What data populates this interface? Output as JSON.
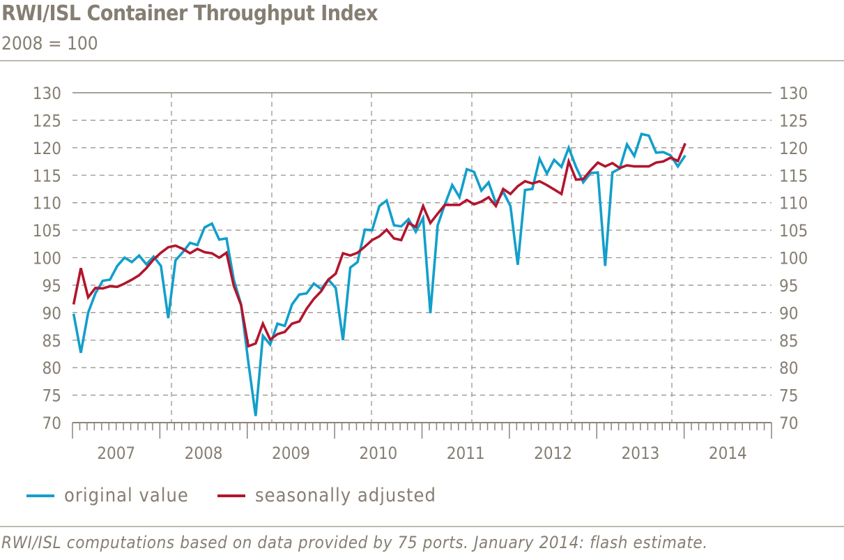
{
  "chart_data": {
    "type": "line",
    "title": "RWI/ISL Container Throughput Index",
    "subtitle": "2008 = 100",
    "xlabel": "",
    "ylabel": "",
    "x_start": "2007-01",
    "x_end": "2014-01",
    "x_frequency": "monthly",
    "x_tick_labels": [
      "2007",
      "2008",
      "2009",
      "2010",
      "2011",
      "2012",
      "2013",
      "2014"
    ],
    "ylim": [
      70,
      130
    ],
    "y_ticks": [
      70,
      75,
      80,
      85,
      90,
      95,
      100,
      105,
      110,
      115,
      120,
      125,
      130
    ],
    "grid": true,
    "legend_placement": "bottom-left",
    "series": [
      {
        "name": "original value",
        "color": "#129fcb",
        "values": [
          89.8,
          82.7,
          90,
          93.5,
          95.8,
          96,
          98.5,
          100,
          99.2,
          100.4,
          98.8,
          100.2,
          98.5,
          89,
          99.5,
          101,
          102.7,
          102.3,
          105.5,
          106.2,
          103.3,
          103.5,
          96,
          91.5,
          81,
          71.2,
          85.8,
          84.2,
          88,
          87.6,
          91.5,
          93.3,
          93.5,
          95.3,
          94.3,
          96,
          94.5,
          85,
          98.2,
          99.2,
          105.1,
          105,
          109.4,
          110.4,
          105.9,
          105.7,
          107,
          104.7,
          107.2,
          89.9,
          105.9,
          109.7,
          113.2,
          111,
          116.1,
          115.6,
          112.2,
          113.7,
          109.9,
          112,
          109.4,
          98.7,
          112.3,
          112.5,
          118,
          115.3,
          117.8,
          116.5,
          120,
          116.5,
          113.7,
          115.4,
          115.5,
          98.5,
          115.5,
          116.2,
          120.6,
          118.5,
          122.5,
          122.2,
          119.1,
          119.2,
          118.6,
          116.6,
          118.6
        ]
      },
      {
        "name": "seasonally adjusted",
        "color": "#b2152e",
        "values": [
          91.5,
          98.1,
          92.8,
          94.5,
          94.4,
          94.8,
          94.7,
          95.3,
          96,
          96.8,
          98.1,
          99.7,
          100.9,
          101.9,
          102.2,
          101.6,
          100.8,
          101.6,
          101,
          100.8,
          100,
          100.9,
          94.9,
          91.4,
          83.9,
          84.4,
          88,
          85.1,
          86.1,
          86.5,
          88,
          88.4,
          90.7,
          92.5,
          93.9,
          96,
          97.1,
          100.8,
          100.4,
          100.9,
          102,
          103.2,
          103.9,
          105.1,
          103.5,
          103.2,
          106.3,
          105.6,
          109.4,
          106.3,
          108,
          109.6,
          109.6,
          109.6,
          110.5,
          109.7,
          110.2,
          111,
          109.4,
          112.5,
          111.6,
          113,
          113.9,
          113.5,
          113.9,
          113.2,
          112.4,
          111.6,
          117.5,
          114.2,
          114.3,
          115.9,
          117.3,
          116.6,
          117.2,
          116.3,
          116.8,
          116.6,
          116.6,
          116.6,
          117.3,
          117.5,
          118.2,
          117.6,
          120.8
        ]
      }
    ]
  },
  "footer": "RWI/ISL computations based on data provided by 75 ports. January 2014: flash estimate.",
  "colors": {
    "text": "#857e72",
    "grid": "#9b958b",
    "axis": "#8a8479"
  }
}
